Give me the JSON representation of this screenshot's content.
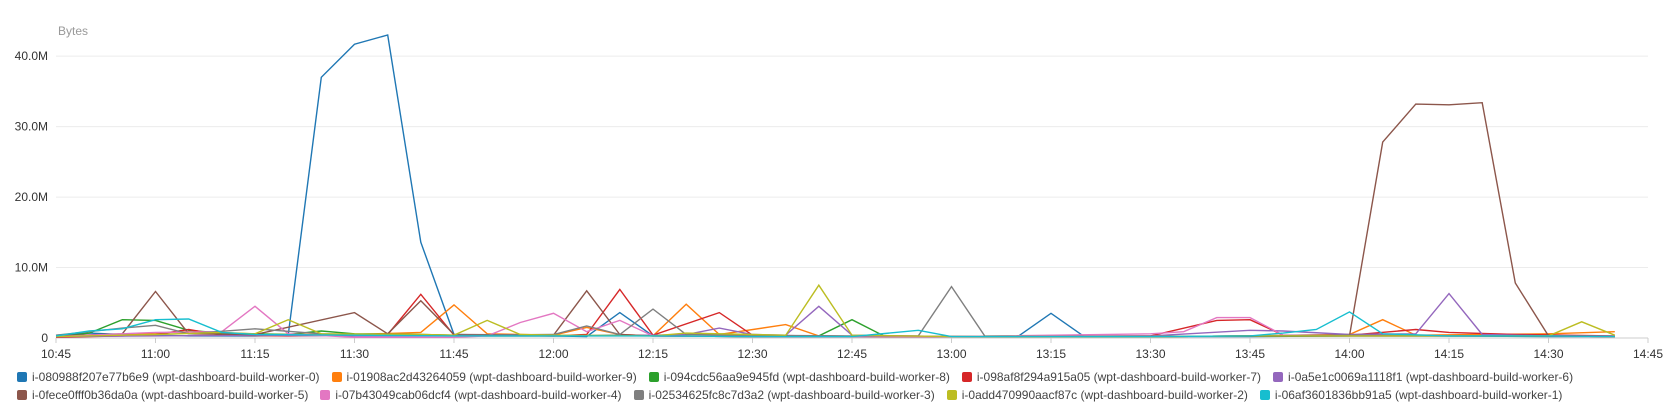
{
  "chart_data": {
    "type": "line",
    "ylabel": "Bytes",
    "ylim": [
      0,
      44
    ],
    "yunit": "M",
    "yticks": [
      0,
      10,
      20,
      30,
      40
    ],
    "yticklabels": [
      "0",
      "10.0M",
      "20.0M",
      "30.0M",
      "40.0M"
    ],
    "xlim": [
      "10:45",
      "14:45"
    ],
    "xticks": [
      "10:45",
      "11:00",
      "11:15",
      "11:30",
      "11:45",
      "12:00",
      "12:15",
      "12:30",
      "12:45",
      "13:00",
      "13:15",
      "13:30",
      "13:45",
      "14:00",
      "14:15",
      "14:30",
      "14:45"
    ],
    "grid": "horizontal",
    "legend_position": "bottom",
    "series": [
      {
        "name": "i-080988f207e77b6e9 (wpt-dashboard-build-worker-0)",
        "color": "#1f77b4",
        "points": [
          [
            "10:45",
            0.4
          ],
          [
            "10:50",
            0.7
          ],
          [
            "10:55",
            0.5
          ],
          [
            "11:00",
            0.4
          ],
          [
            "11:05",
            0.3
          ],
          [
            "11:10",
            0.3
          ],
          [
            "11:15",
            0.3
          ],
          [
            "11:20",
            0.4
          ],
          [
            "11:25",
            37
          ],
          [
            "11:30",
            41.7
          ],
          [
            "11:35",
            43
          ],
          [
            "11:40",
            13.6
          ],
          [
            "11:45",
            0.5
          ],
          [
            "12:00",
            0.3
          ],
          [
            "12:05",
            0.2
          ],
          [
            "12:10",
            3.6
          ],
          [
            "12:15",
            0.3
          ],
          [
            "12:30",
            0.2
          ],
          [
            "12:45",
            0.2
          ],
          [
            "13:00",
            0.2
          ],
          [
            "13:05",
            0.2
          ],
          [
            "13:10",
            0.2
          ],
          [
            "13:15",
            3.5
          ],
          [
            "13:20",
            0.2
          ],
          [
            "13:30",
            0.2
          ],
          [
            "13:45",
            0.2
          ],
          [
            "14:00",
            0.3
          ],
          [
            "14:15",
            0.3
          ],
          [
            "14:30",
            0.2
          ],
          [
            "14:40",
            0.2
          ]
        ]
      },
      {
        "name": "i-01908ac2d43264059 (wpt-dashboard-build-worker-9)",
        "color": "#ff7f0e",
        "points": [
          [
            "10:45",
            0.2
          ],
          [
            "10:55",
            0.4
          ],
          [
            "11:00",
            0.7
          ],
          [
            "11:05",
            0.9
          ],
          [
            "11:10",
            0.6
          ],
          [
            "11:20",
            0.5
          ],
          [
            "11:30",
            0.5
          ],
          [
            "11:40",
            0.8
          ],
          [
            "11:45",
            4.7
          ],
          [
            "11:50",
            0.6
          ],
          [
            "12:00",
            0.4
          ],
          [
            "12:05",
            1.5
          ],
          [
            "12:10",
            0.5
          ],
          [
            "12:15",
            0.3
          ],
          [
            "12:20",
            4.8
          ],
          [
            "12:25",
            0.5
          ],
          [
            "12:35",
            1.9
          ],
          [
            "12:40",
            0.3
          ],
          [
            "12:50",
            0.2
          ],
          [
            "13:00",
            0.2
          ],
          [
            "13:30",
            0.2
          ],
          [
            "13:45",
            0.3
          ],
          [
            "14:00",
            0.5
          ],
          [
            "14:05",
            2.6
          ],
          [
            "14:10",
            0.4
          ],
          [
            "14:20",
            0.5
          ],
          [
            "14:30",
            0.6
          ],
          [
            "14:40",
            0.9
          ]
        ]
      },
      {
        "name": "i-094cdc56aa9e945fd (wpt-dashboard-build-worker-8)",
        "color": "#2ca02c",
        "points": [
          [
            "10:45",
            0.1
          ],
          [
            "10:50",
            0.7
          ],
          [
            "10:55",
            2.6
          ],
          [
            "11:00",
            2.5
          ],
          [
            "11:05",
            1.1
          ],
          [
            "11:10",
            0.7
          ],
          [
            "11:20",
            0.5
          ],
          [
            "11:25",
            1.0
          ],
          [
            "11:30",
            0.6
          ],
          [
            "11:40",
            0.5
          ],
          [
            "11:50",
            0.3
          ],
          [
            "12:00",
            0.3
          ],
          [
            "12:10",
            0.4
          ],
          [
            "12:20",
            0.3
          ],
          [
            "12:30",
            0.2
          ],
          [
            "12:40",
            0.3
          ],
          [
            "12:45",
            2.6
          ],
          [
            "12:50",
            0.2
          ],
          [
            "13:00",
            0.2
          ],
          [
            "13:30",
            0.2
          ],
          [
            "13:45",
            0.3
          ],
          [
            "14:00",
            0.3
          ],
          [
            "14:15",
            0.3
          ],
          [
            "14:30",
            0.3
          ],
          [
            "14:40",
            0.2
          ]
        ]
      },
      {
        "name": "i-098af8f294a915a05 (wpt-dashboard-build-worker-7)",
        "color": "#d62728",
        "points": [
          [
            "10:45",
            0.1
          ],
          [
            "10:55",
            0.3
          ],
          [
            "11:00",
            0.5
          ],
          [
            "11:05",
            1.2
          ],
          [
            "11:10",
            0.4
          ],
          [
            "11:20",
            0.3
          ],
          [
            "11:30",
            0.4
          ],
          [
            "11:35",
            0.5
          ],
          [
            "11:40",
            6.2
          ],
          [
            "11:45",
            0.4
          ],
          [
            "12:00",
            0.3
          ],
          [
            "12:05",
            0.5
          ],
          [
            "12:10",
            6.9
          ],
          [
            "12:15",
            0.4
          ],
          [
            "12:25",
            3.6
          ],
          [
            "12:30",
            0.4
          ],
          [
            "12:40",
            0.3
          ],
          [
            "12:50",
            0.2
          ],
          [
            "13:00",
            0.2
          ],
          [
            "13:30",
            0.3
          ],
          [
            "13:40",
            2.5
          ],
          [
            "13:45",
            2.6
          ],
          [
            "13:50",
            0.4
          ],
          [
            "14:00",
            0.4
          ],
          [
            "14:10",
            1.2
          ],
          [
            "14:15",
            0.8
          ],
          [
            "14:25",
            0.5
          ],
          [
            "14:40",
            0.3
          ]
        ]
      },
      {
        "name": "i-0a5e1c0069a1118f1 (wpt-dashboard-build-worker-6)",
        "color": "#9467bd",
        "points": [
          [
            "10:45",
            0.2
          ],
          [
            "11:00",
            0.3
          ],
          [
            "11:15",
            0.4
          ],
          [
            "11:30",
            0.3
          ],
          [
            "11:45",
            0.3
          ],
          [
            "12:00",
            0.3
          ],
          [
            "12:15",
            0.4
          ],
          [
            "12:20",
            0.5
          ],
          [
            "12:25",
            1.4
          ],
          [
            "12:30",
            0.5
          ],
          [
            "12:35",
            0.4
          ],
          [
            "12:40",
            4.5
          ],
          [
            "12:45",
            0.4
          ],
          [
            "13:00",
            0.2
          ],
          [
            "13:30",
            0.3
          ],
          [
            "13:45",
            1.1
          ],
          [
            "13:50",
            1.0
          ],
          [
            "14:00",
            0.5
          ],
          [
            "14:10",
            0.6
          ],
          [
            "14:15",
            6.3
          ],
          [
            "14:20",
            0.5
          ],
          [
            "14:30",
            0.3
          ],
          [
            "14:40",
            0.3
          ]
        ]
      },
      {
        "name": "i-0fece0fff0b36da0a (wpt-dashboard-build-worker-5)",
        "color": "#8c564b",
        "points": [
          [
            "10:45",
            0.3
          ],
          [
            "10:55",
            0.6
          ],
          [
            "11:00",
            6.6
          ],
          [
            "11:05",
            0.6
          ],
          [
            "11:15",
            0.5
          ],
          [
            "11:30",
            3.6
          ],
          [
            "11:35",
            0.6
          ],
          [
            "11:40",
            5.3
          ],
          [
            "11:45",
            0.5
          ],
          [
            "12:00",
            0.4
          ],
          [
            "12:05",
            6.7
          ],
          [
            "12:10",
            0.5
          ],
          [
            "12:15",
            0.3
          ],
          [
            "12:30",
            0.2
          ],
          [
            "12:45",
            0.2
          ],
          [
            "13:00",
            0.2
          ],
          [
            "13:30",
            0.2
          ],
          [
            "13:45",
            0.3
          ],
          [
            "14:00",
            0.3
          ],
          [
            "14:05",
            27.8
          ],
          [
            "14:10",
            33.2
          ],
          [
            "14:15",
            33.1
          ],
          [
            "14:20",
            33.4
          ],
          [
            "14:25",
            7.8
          ],
          [
            "14:30",
            0.3
          ],
          [
            "14:40",
            0.2
          ]
        ]
      },
      {
        "name": "i-07b43049cab06dcf4 (wpt-dashboard-build-worker-4)",
        "color": "#e377c2",
        "points": [
          [
            "10:45",
            0.2
          ],
          [
            "11:00",
            0.8
          ],
          [
            "11:10",
            0.9
          ],
          [
            "11:15",
            4.5
          ],
          [
            "11:20",
            0.6
          ],
          [
            "11:30",
            0.1
          ],
          [
            "11:45",
            0.1
          ],
          [
            "11:50",
            0.3
          ],
          [
            "11:55",
            2.2
          ],
          [
            "12:00",
            3.5
          ],
          [
            "12:05",
            0.9
          ],
          [
            "12:10",
            2.5
          ],
          [
            "12:15",
            0.3
          ],
          [
            "12:30",
            0.2
          ],
          [
            "12:45",
            0.2
          ],
          [
            "13:00",
            0.2
          ],
          [
            "13:30",
            0.6
          ],
          [
            "13:35",
            0.9
          ],
          [
            "13:40",
            2.9
          ],
          [
            "13:45",
            2.9
          ],
          [
            "13:50",
            0.4
          ],
          [
            "14:00",
            0.3
          ],
          [
            "14:15",
            0.3
          ],
          [
            "14:30",
            0.3
          ],
          [
            "14:40",
            0.2
          ]
        ]
      },
      {
        "name": "i-02534625fc8c7d3a2 (wpt-dashboard-build-worker-3)",
        "color": "#7f7f7f",
        "points": [
          [
            "10:45",
            0.4
          ],
          [
            "10:55",
            1.4
          ],
          [
            "11:00",
            1.8
          ],
          [
            "11:05",
            0.6
          ],
          [
            "11:15",
            1.3
          ],
          [
            "11:25",
            0.6
          ],
          [
            "11:30",
            0.5
          ],
          [
            "11:45",
            0.4
          ],
          [
            "12:00",
            0.5
          ],
          [
            "12:05",
            1.7
          ],
          [
            "12:10",
            0.5
          ],
          [
            "12:15",
            4.1
          ],
          [
            "12:20",
            0.5
          ],
          [
            "12:30",
            0.4
          ],
          [
            "12:45",
            0.3
          ],
          [
            "12:55",
            0.3
          ],
          [
            "13:00",
            7.3
          ],
          [
            "13:05",
            0.3
          ],
          [
            "13:15",
            0.2
          ],
          [
            "13:30",
            0.2
          ],
          [
            "13:45",
            0.3
          ],
          [
            "14:00",
            0.4
          ],
          [
            "14:15",
            0.3
          ],
          [
            "14:30",
            0.3
          ],
          [
            "14:40",
            0.2
          ]
        ]
      },
      {
        "name": "i-0add470990aacf87c (wpt-dashboard-build-worker-2)",
        "color": "#bcbd22",
        "points": [
          [
            "10:45",
            0.2
          ],
          [
            "11:00",
            0.5
          ],
          [
            "11:10",
            0.8
          ],
          [
            "11:15",
            0.6
          ],
          [
            "11:20",
            2.6
          ],
          [
            "11:25",
            0.6
          ],
          [
            "11:40",
            0.5
          ],
          [
            "11:45",
            0.4
          ],
          [
            "11:50",
            2.5
          ],
          [
            "11:55",
            0.5
          ],
          [
            "12:00",
            0.4
          ],
          [
            "12:15",
            0.3
          ],
          [
            "12:20",
            0.7
          ],
          [
            "12:30",
            0.5
          ],
          [
            "12:35",
            0.4
          ],
          [
            "12:40",
            7.5
          ],
          [
            "12:45",
            0.4
          ],
          [
            "13:00",
            0.2
          ],
          [
            "13:30",
            0.2
          ],
          [
            "13:45",
            0.3
          ],
          [
            "14:00",
            0.3
          ],
          [
            "14:15",
            0.3
          ],
          [
            "14:30",
            0.3
          ],
          [
            "14:35",
            2.3
          ],
          [
            "14:40",
            0.4
          ]
        ]
      },
      {
        "name": "i-06af3601836bb91a5 (wpt-dashboard-build-worker-1)",
        "color": "#17becf",
        "points": [
          [
            "10:45",
            0.3
          ],
          [
            "10:50",
            1.0
          ],
          [
            "10:55",
            1.3
          ],
          [
            "11:00",
            2.6
          ],
          [
            "11:05",
            2.7
          ],
          [
            "11:10",
            0.8
          ],
          [
            "11:15",
            0.5
          ],
          [
            "11:30",
            0.4
          ],
          [
            "11:45",
            0.3
          ],
          [
            "12:00",
            0.3
          ],
          [
            "12:15",
            0.3
          ],
          [
            "12:30",
            0.2
          ],
          [
            "12:45",
            0.2
          ],
          [
            "12:55",
            1.1
          ],
          [
            "13:00",
            0.2
          ],
          [
            "13:30",
            0.2
          ],
          [
            "13:45",
            0.3
          ],
          [
            "13:50",
            0.7
          ],
          [
            "13:55",
            1.2
          ],
          [
            "14:00",
            3.7
          ],
          [
            "14:05",
            0.6
          ],
          [
            "14:15",
            0.3
          ],
          [
            "14:30",
            0.3
          ],
          [
            "14:40",
            0.2
          ]
        ]
      }
    ]
  }
}
